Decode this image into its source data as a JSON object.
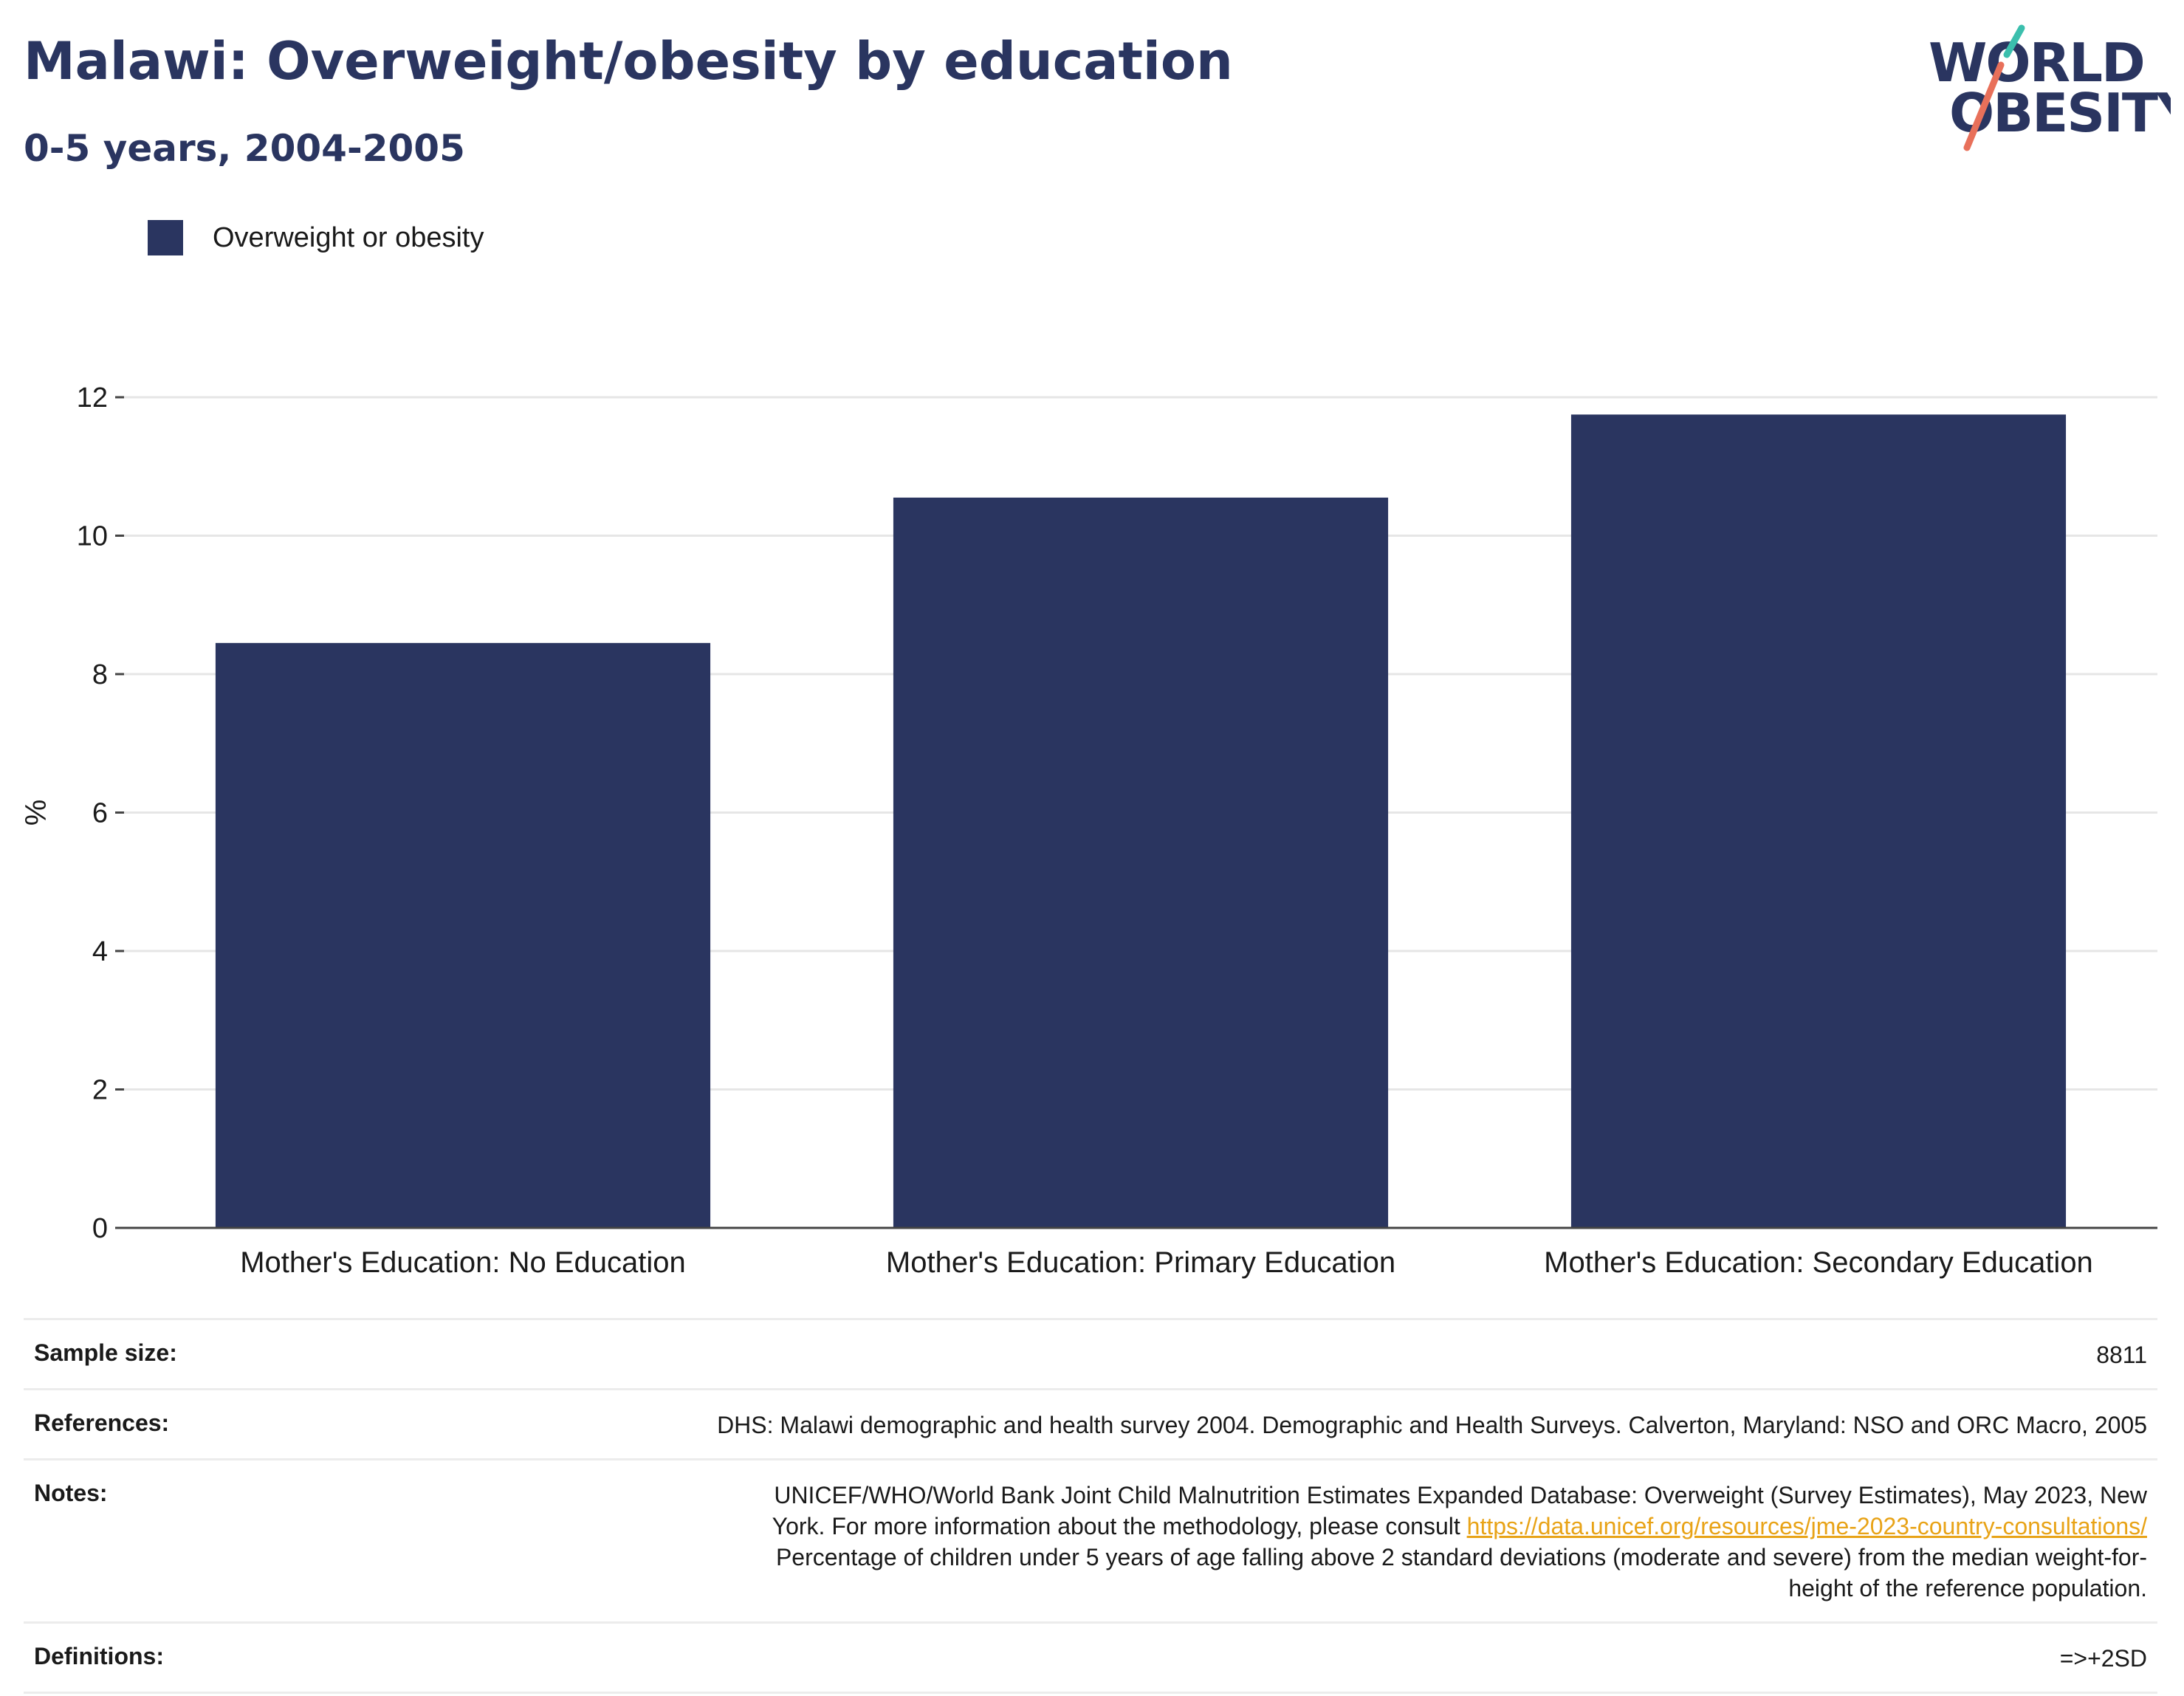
{
  "header": {
    "title": "Malawi: Overweight/obesity by education",
    "subtitle": "0-5 years, 2004-2005"
  },
  "logo": {
    "line1": "WORLD",
    "line2": "OBESITY",
    "slash_top_color": "#3bbfad",
    "slash_bottom_color": "#e8705a",
    "text_color": "#2a3560"
  },
  "colors": {
    "bar": "#2a3560",
    "gridline": "#e6e6e6",
    "axis": "#444444",
    "link": "#e8a317"
  },
  "chart_data": {
    "type": "bar",
    "categories": [
      "Mother's Education: No Education",
      "Mother's Education: Primary Education",
      "Mother's Education: Secondary Education"
    ],
    "series": [
      {
        "name": "Overweight or obesity",
        "values": [
          8.45,
          10.55,
          11.75
        ],
        "color": "#2a3560"
      }
    ],
    "ylabel": "%",
    "xlabel": "",
    "ylim": [
      0,
      12
    ],
    "yticks": [
      0,
      2,
      4,
      6,
      8,
      10,
      12
    ],
    "grid": true,
    "legend": "top-left"
  },
  "info": {
    "sample_size": {
      "label": "Sample size:",
      "value": "8811"
    },
    "references": {
      "label": "References:",
      "value": "DHS: Malawi demographic and health survey 2004. Demographic and Health Surveys. Calverton, Maryland: NSO and ORC Macro, 2005"
    },
    "notes": {
      "label": "Notes:",
      "line1": "UNICEF/WHO/World Bank Joint Child Malnutrition Estimates Expanded Database: Overweight (Survey Estimates), May 2023, New",
      "line2_prefix": "York. For more information about the methodology, please consult ",
      "link": "https://data.unicef.org/resources/jme-2023-country-consultations/",
      "line3": "Percentage of children under 5 years of age falling above 2 standard deviations (moderate and severe) from the median weight-for-",
      "line4": "height of the reference population."
    },
    "definitions": {
      "label": "Definitions:",
      "value": "=>+2SD"
    }
  }
}
